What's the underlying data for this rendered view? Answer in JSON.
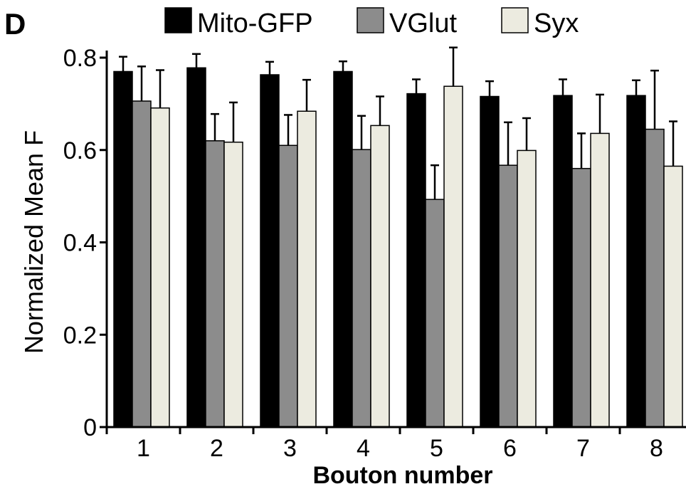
{
  "panel_label": "D",
  "chart_data": {
    "type": "bar",
    "title": "",
    "xlabel": "Bouton number",
    "ylabel": "Normalized Mean F",
    "ylim": [
      0,
      0.8
    ],
    "yticks": [
      "0",
      "0.2",
      "0.4",
      "0.6",
      "0.8"
    ],
    "ytick_values": [
      0,
      0.2,
      0.4,
      0.6,
      0.8
    ],
    "categories": [
      "1",
      "2",
      "3",
      "4",
      "5",
      "6",
      "7",
      "8"
    ],
    "legend_position": "top",
    "grid": false,
    "series": [
      {
        "name": "Mito-GFP",
        "color": "#000000",
        "values": [
          0.77,
          0.778,
          0.763,
          0.77,
          0.722,
          0.716,
          0.718,
          0.718
        ],
        "errors": [
          0.032,
          0.03,
          0.028,
          0.022,
          0.031,
          0.033,
          0.035,
          0.033
        ]
      },
      {
        "name": "VGlut",
        "color": "#8c8c8c",
        "values": [
          0.706,
          0.62,
          0.61,
          0.601,
          0.493,
          0.567,
          0.56,
          0.645
        ],
        "errors": [
          0.075,
          0.058,
          0.066,
          0.073,
          0.074,
          0.093,
          0.076,
          0.127
        ]
      },
      {
        "name": "Syx",
        "color": "#ecebe0",
        "values": [
          0.691,
          0.617,
          0.684,
          0.653,
          0.738,
          0.599,
          0.636,
          0.565
        ],
        "errors": [
          0.082,
          0.086,
          0.068,
          0.063,
          0.084,
          0.07,
          0.084,
          0.097
        ]
      }
    ]
  }
}
